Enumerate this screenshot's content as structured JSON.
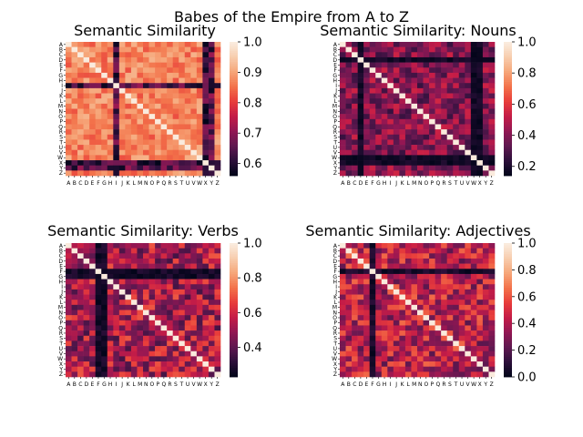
{
  "figure": {
    "suptitle": "Babes of the Empire from A to Z"
  },
  "chart_data": [
    {
      "type": "heatmap",
      "title": "Semantic Similarity",
      "labels": [
        "A",
        "B",
        "C",
        "D",
        "E",
        "F",
        "G",
        "H",
        "I",
        "J",
        "K",
        "L",
        "M",
        "N",
        "O",
        "P",
        "Q",
        "R",
        "S",
        "T",
        "U",
        "V",
        "W",
        "X",
        "Y",
        "Z"
      ],
      "vmin": 0.56,
      "vmax": 1.0,
      "colorbar_ticks": [
        "1.0",
        "0.9",
        "0.8",
        "0.7",
        "0.6"
      ],
      "diagonal": 1.0,
      "typical_range": [
        0.82,
        0.92
      ],
      "low_rows": [
        "I",
        "X",
        "Y"
      ]
    },
    {
      "type": "heatmap",
      "title": "Semantic Similarity: Nouns",
      "labels": [
        "A",
        "B",
        "C",
        "D",
        "E",
        "F",
        "G",
        "H",
        "I",
        "J",
        "K",
        "L",
        "M",
        "N",
        "O",
        "P",
        "Q",
        "R",
        "S",
        "T",
        "U",
        "V",
        "W",
        "X",
        "Y",
        "Z"
      ],
      "vmin": 0.14,
      "vmax": 1.0,
      "colorbar_ticks": [
        "1.0",
        "0.8",
        "0.6",
        "0.4",
        "0.2"
      ],
      "diagonal": 1.0,
      "typical_range": [
        0.25,
        0.55
      ],
      "low_rows": [
        "D",
        "W",
        "X"
      ]
    },
    {
      "type": "heatmap",
      "title": "Semantic Similarity: Verbs",
      "labels": [
        "A",
        "B",
        "C",
        "D",
        "E",
        "F",
        "G",
        "H",
        "I",
        "J",
        "K",
        "L",
        "M",
        "N",
        "O",
        "P",
        "Q",
        "R",
        "S",
        "T",
        "U",
        "V",
        "W",
        "X",
        "Y",
        "Z"
      ],
      "vmin": 0.23,
      "vmax": 1.0,
      "colorbar_ticks": [
        "1.0",
        "0.8",
        "0.6",
        "0.4"
      ],
      "diagonal": 1.0,
      "typical_range": [
        0.35,
        0.7
      ],
      "low_rows": [
        "F",
        "G"
      ]
    },
    {
      "type": "heatmap",
      "title": "Semantic Similarity: Adjectives",
      "labels": [
        "A",
        "B",
        "C",
        "D",
        "E",
        "F",
        "G",
        "H",
        "I",
        "J",
        "K",
        "L",
        "M",
        "N",
        "O",
        "P",
        "Q",
        "R",
        "S",
        "T",
        "U",
        "V",
        "W",
        "X",
        "Y",
        "Z"
      ],
      "vmin": 0.0,
      "vmax": 1.0,
      "colorbar_ticks": [
        "1.0",
        "0.8",
        "0.6",
        "0.4",
        "0.2",
        "0.0"
      ],
      "diagonal": 1.0,
      "typical_range": [
        0.2,
        0.65
      ],
      "low_rows": [
        "F"
      ]
    }
  ]
}
